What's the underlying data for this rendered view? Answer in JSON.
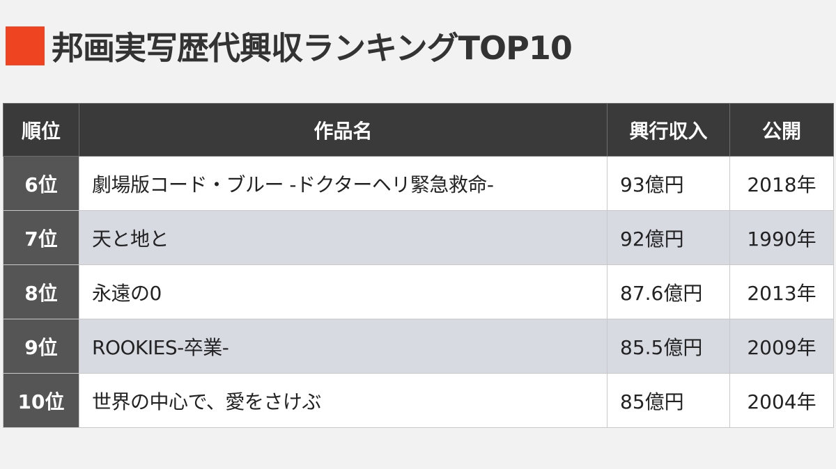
{
  "heading": {
    "title": "邦画実写歴代興収ランキングTOP10",
    "accent_color": "#ee4422"
  },
  "table": {
    "headers": {
      "rank": "順位",
      "title": "作品名",
      "revenue": "興行収入",
      "release": "公開"
    },
    "rows": [
      {
        "rank": "6位",
        "title": "劇場版コード・ブルー -ドクターヘリ緊急救命-",
        "revenue": "93億円",
        "release": "2018年"
      },
      {
        "rank": "7位",
        "title": "天と地と",
        "revenue": "92億円",
        "release": "1990年"
      },
      {
        "rank": "8位",
        "title": "永遠の0",
        "revenue": "87.6億円",
        "release": "2013年"
      },
      {
        "rank": "9位",
        "title": "ROOKIES-卒業-",
        "revenue": "85.5億円",
        "release": "2009年"
      },
      {
        "rank": "10位",
        "title": "世界の中心で、愛をさけぶ",
        "revenue": "85億円",
        "release": "2004年"
      }
    ]
  }
}
